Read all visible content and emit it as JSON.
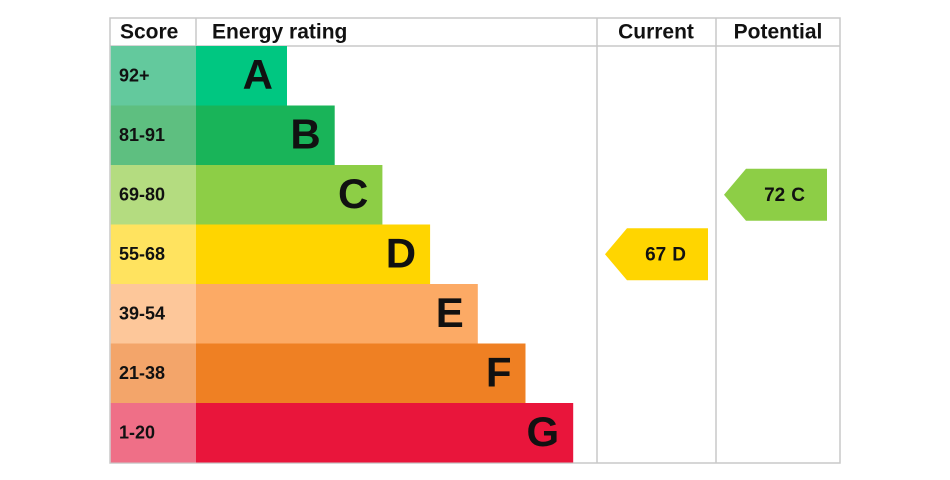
{
  "header": {
    "score": "Score",
    "rating": "Energy rating",
    "current": "Current",
    "potential": "Potential"
  },
  "bands": [
    {
      "score": "92+",
      "letter": "A",
      "color": "#00c781",
      "score_color": "#63c99d"
    },
    {
      "score": "81-91",
      "letter": "B",
      "color": "#19b459",
      "score_color": "#5ebf80"
    },
    {
      "score": "69-80",
      "letter": "C",
      "color": "#8dce46",
      "score_color": "#b4dc80"
    },
    {
      "score": "55-68",
      "letter": "D",
      "color": "#ffd500",
      "score_color": "#ffe35f"
    },
    {
      "score": "39-54",
      "letter": "E",
      "color": "#fcaa65",
      "score_color": "#fdc79a"
    },
    {
      "score": "21-38",
      "letter": "F",
      "color": "#ef8023",
      "score_color": "#f3a56a"
    },
    {
      "score": "1-20",
      "letter": "G",
      "color": "#e9153b",
      "score_color": "#ef6f87"
    }
  ],
  "current": {
    "score": 67,
    "rating": "D"
  },
  "potential": {
    "score": 72,
    "rating": "C"
  }
}
